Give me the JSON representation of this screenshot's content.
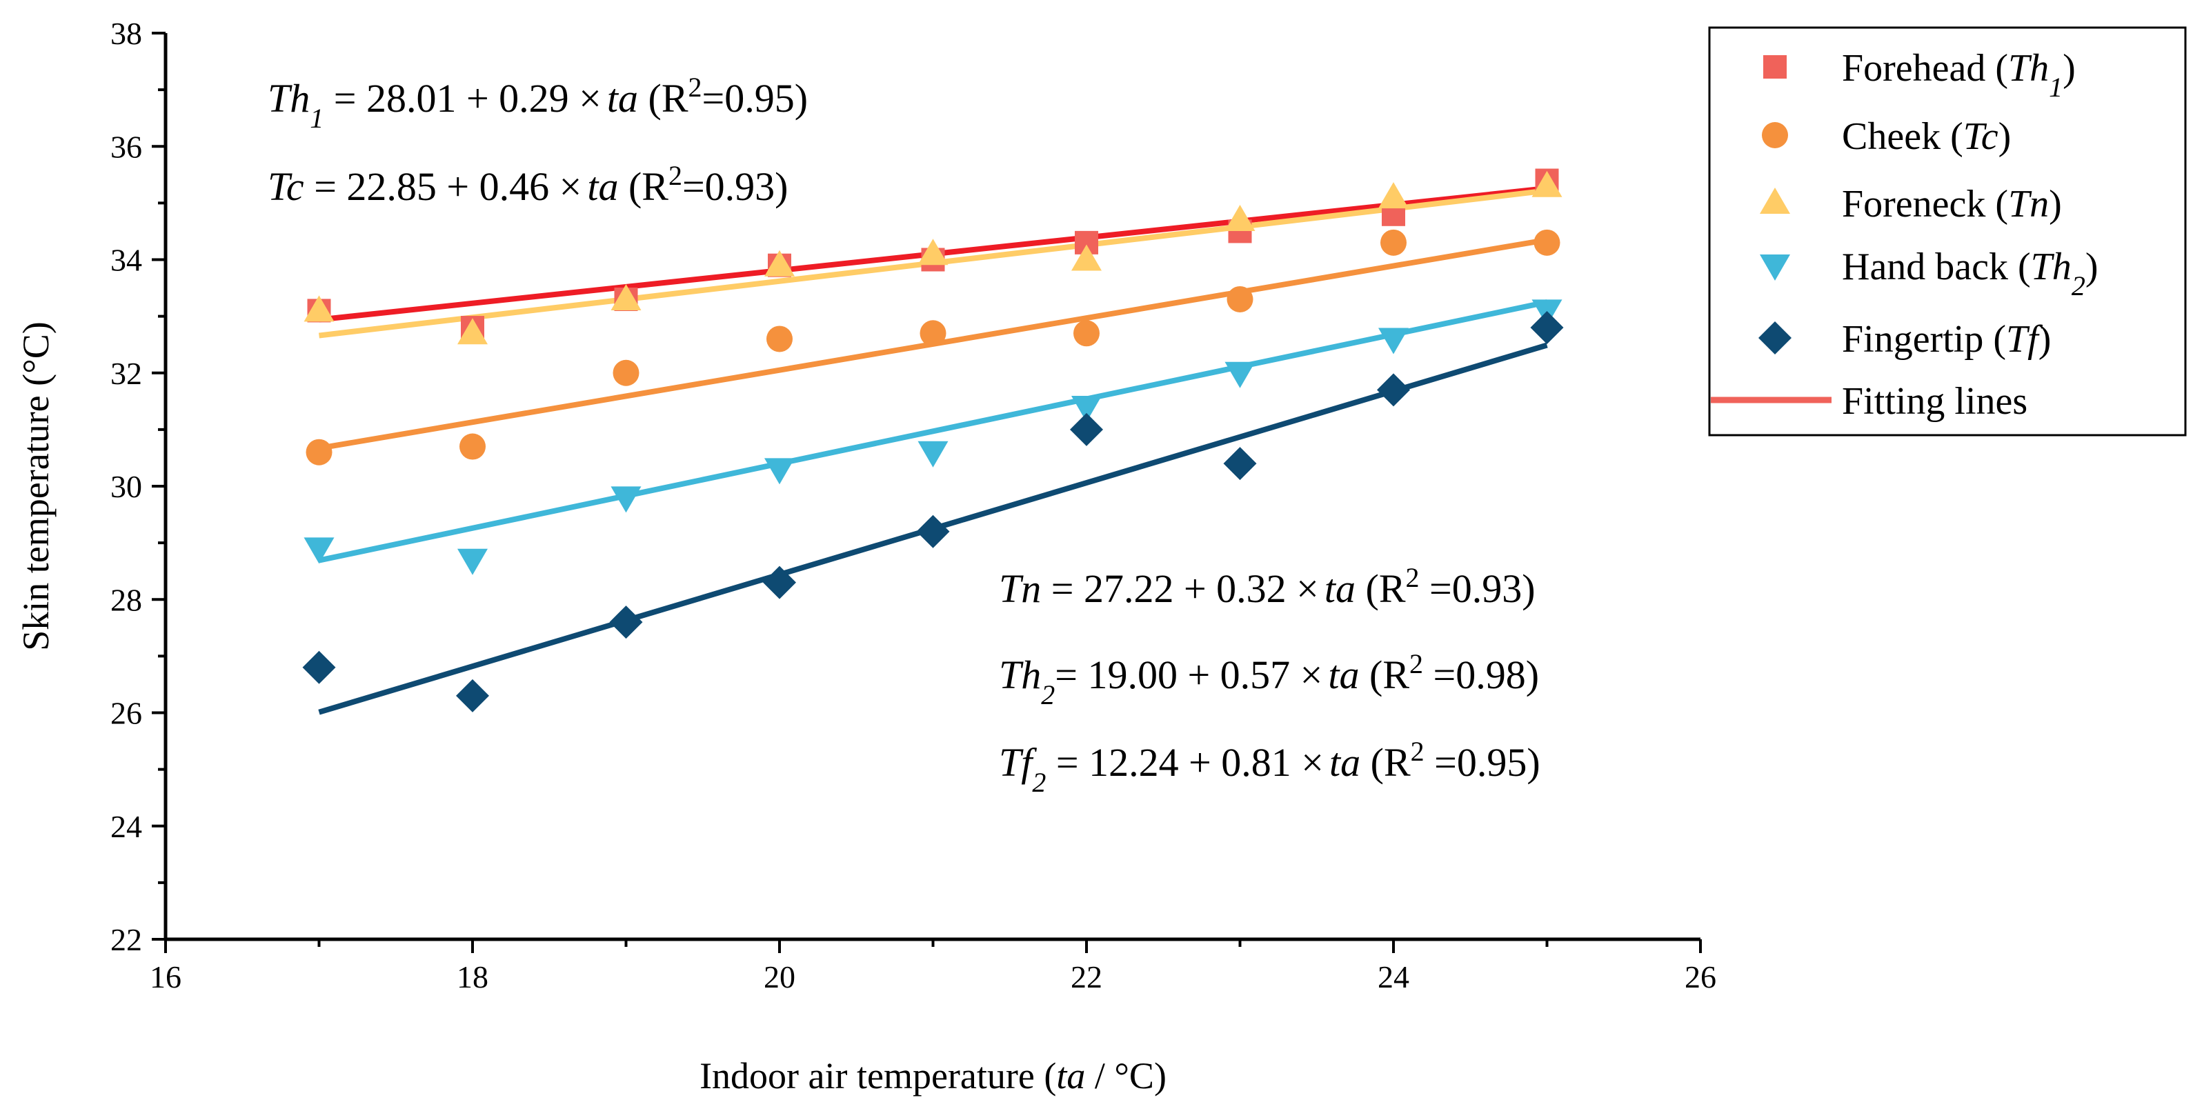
{
  "chart_data": {
    "type": "scatter",
    "title": "",
    "xlabel_parts": [
      "Indoor air temperature (",
      "ta",
      " / °C)"
    ],
    "ylabel": "Skin temperature (°C)",
    "xlim": [
      16,
      26
    ],
    "ylim": [
      22,
      38
    ],
    "xticks": [
      16,
      18,
      20,
      22,
      24,
      26
    ],
    "yticks": [
      22,
      24,
      26,
      28,
      30,
      32,
      34,
      36,
      38
    ],
    "grid": false,
    "legend_position": "outside-right",
    "x": [
      17,
      18,
      19,
      20,
      21,
      22,
      23,
      24,
      25
    ],
    "series": [
      {
        "name": "Forehead (Th1)",
        "label_parts": [
          "Forehead (",
          "Th",
          "1",
          ")"
        ],
        "marker": "square",
        "color": "#F0625A",
        "values": [
          33.1,
          32.8,
          33.3,
          33.9,
          34.0,
          34.3,
          34.5,
          34.8,
          35.4
        ],
        "fit": {
          "intercept": 28.01,
          "slope": 0.29,
          "color": "#EE1C25"
        }
      },
      {
        "name": "Cheek (Tc)",
        "label_parts": [
          "Cheek (",
          "Tc",
          "",
          ")"
        ],
        "marker": "circle",
        "color": "#F5913D",
        "values": [
          30.6,
          30.7,
          32.0,
          32.6,
          32.7,
          32.7,
          33.3,
          34.3,
          34.3
        ],
        "fit": {
          "intercept": 22.85,
          "slope": 0.46,
          "color": "#F5913D"
        }
      },
      {
        "name": "Foreneck (Tn)",
        "label_parts": [
          "Foreneck (",
          "Tn",
          "",
          ")"
        ],
        "marker": "triangle-up",
        "color": "#FFCC66",
        "values": [
          33.1,
          32.7,
          33.3,
          33.9,
          34.1,
          34.0,
          34.7,
          35.1,
          35.3
        ],
        "fit": {
          "intercept": 27.22,
          "slope": 0.32,
          "color": "#FFCC66"
        }
      },
      {
        "name": "Hand back (Th2)",
        "label_parts": [
          "Hand back (",
          "Th",
          "2",
          ")"
        ],
        "marker": "triangle-down",
        "color": "#3FB7D9",
        "values": [
          28.9,
          28.7,
          29.8,
          30.3,
          30.6,
          31.4,
          32.0,
          32.6,
          33.1
        ],
        "fit": {
          "intercept": 19.0,
          "slope": 0.57,
          "color": "#3FB7D9"
        }
      },
      {
        "name": "Fingertip (Tf)",
        "label_parts": [
          "Fingertip (",
          "Tf",
          "",
          ")"
        ],
        "marker": "diamond",
        "color": "#0E4A72",
        "values": [
          26.8,
          26.3,
          27.6,
          28.3,
          29.2,
          31.0,
          30.4,
          31.7,
          32.8
        ],
        "fit": {
          "intercept": 12.24,
          "slope": 0.81,
          "color": "#0E4A72"
        }
      }
    ],
    "fitting_lines_legend": {
      "label": "Fitting lines",
      "color": "#F0625A"
    },
    "annotations": [
      {
        "var": "Th",
        "sub": "1",
        "rest": " = 28.01 + 0.29 ×",
        "ta": "ta",
        "r2_pre": "  (R",
        "r2_sup": "2",
        "r2_post": "=0.95)",
        "anchor": "upper-left"
      },
      {
        "var": "Tc",
        "sub": "",
        "rest": " = 22.85 + 0.46 ×",
        "ta": "ta",
        "r2_pre": "   (R",
        "r2_sup": "2",
        "r2_post": "=0.93)",
        "anchor": "upper-left"
      },
      {
        "var": "Tn",
        "sub": "",
        "rest": " = 27.22 + 0.32 ×",
        "ta": "ta",
        "r2_pre": "  (R",
        "r2_sup": "2",
        "r2_post": " =0.93)",
        "anchor": "lower-right"
      },
      {
        "var": "Th",
        "sub": "2",
        "rest": "= 19.00 + 0.57 ×",
        "ta": "ta",
        "r2_pre": "  (R",
        "r2_sup": "2",
        "r2_post": " =0.98)",
        "anchor": "lower-right"
      },
      {
        "var": "Tf",
        "sub": "2",
        "rest": " = 12.24 + 0.81 ×",
        "ta": "ta",
        "r2_pre": "  (R",
        "r2_sup": "2",
        "r2_post": " =0.95)",
        "anchor": "lower-right"
      }
    ]
  }
}
